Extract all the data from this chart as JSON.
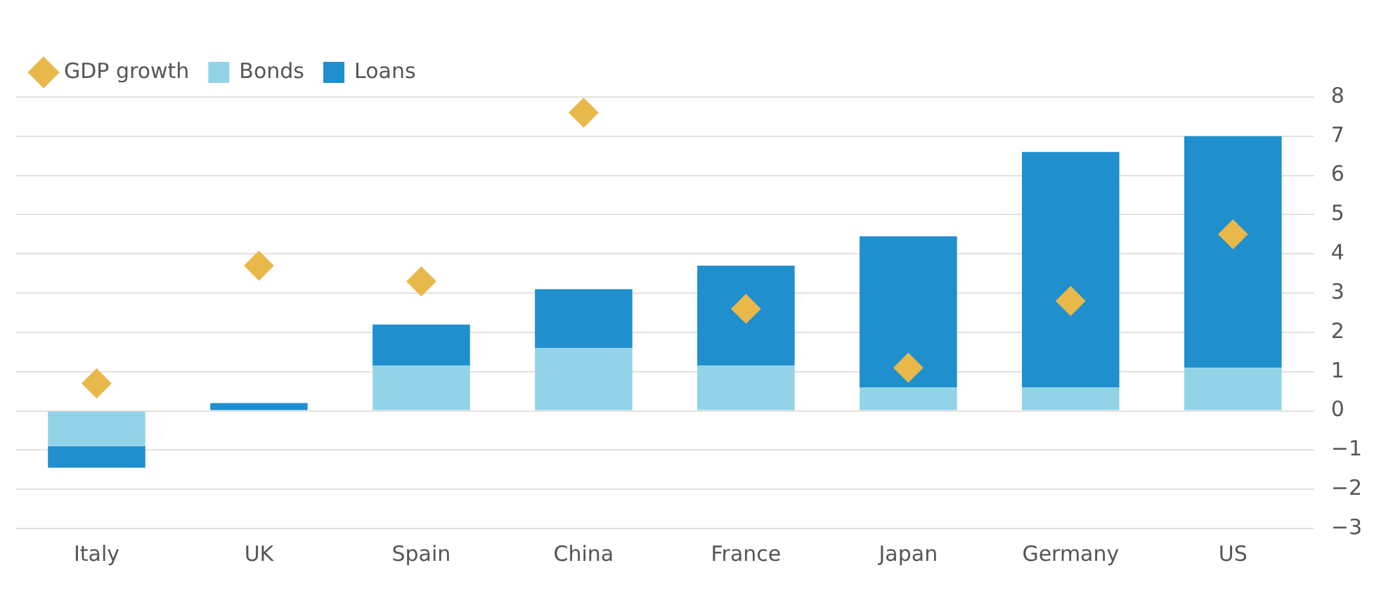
{
  "chart_data": {
    "type": "bar",
    "stacked": true,
    "categories": [
      "Italy",
      "UK",
      "Spain",
      "China",
      "France",
      "Japan",
      "Germany",
      "US"
    ],
    "series": [
      {
        "name": "Bonds",
        "color": "#93d3e8",
        "values": [
          -0.9,
          0,
          1.15,
          1.6,
          1.15,
          0.6,
          0.6,
          1.1
        ]
      },
      {
        "name": "Loans",
        "color": "#1f8fce",
        "values": [
          -0.55,
          0.2,
          1.05,
          1.5,
          2.55,
          3.85,
          6.0,
          5.9
        ]
      },
      {
        "name": "GDP growth",
        "type": "scatter",
        "marker": "diamond",
        "color": "#e8b84a",
        "x": [
          "Italy",
          "UK",
          "Spain",
          "China",
          "France",
          "Japan",
          "Germany",
          "US"
        ],
        "values": [
          0.7,
          3.7,
          3.3,
          7.6,
          2.6,
          1.1,
          2.8,
          4.5
        ]
      }
    ],
    "ylim": [
      -3,
      8
    ],
    "yticks": [
      -3,
      -2,
      -1,
      0,
      1,
      2,
      3,
      4,
      5,
      6,
      7,
      8
    ],
    "grid": "y",
    "legend": "top left"
  }
}
